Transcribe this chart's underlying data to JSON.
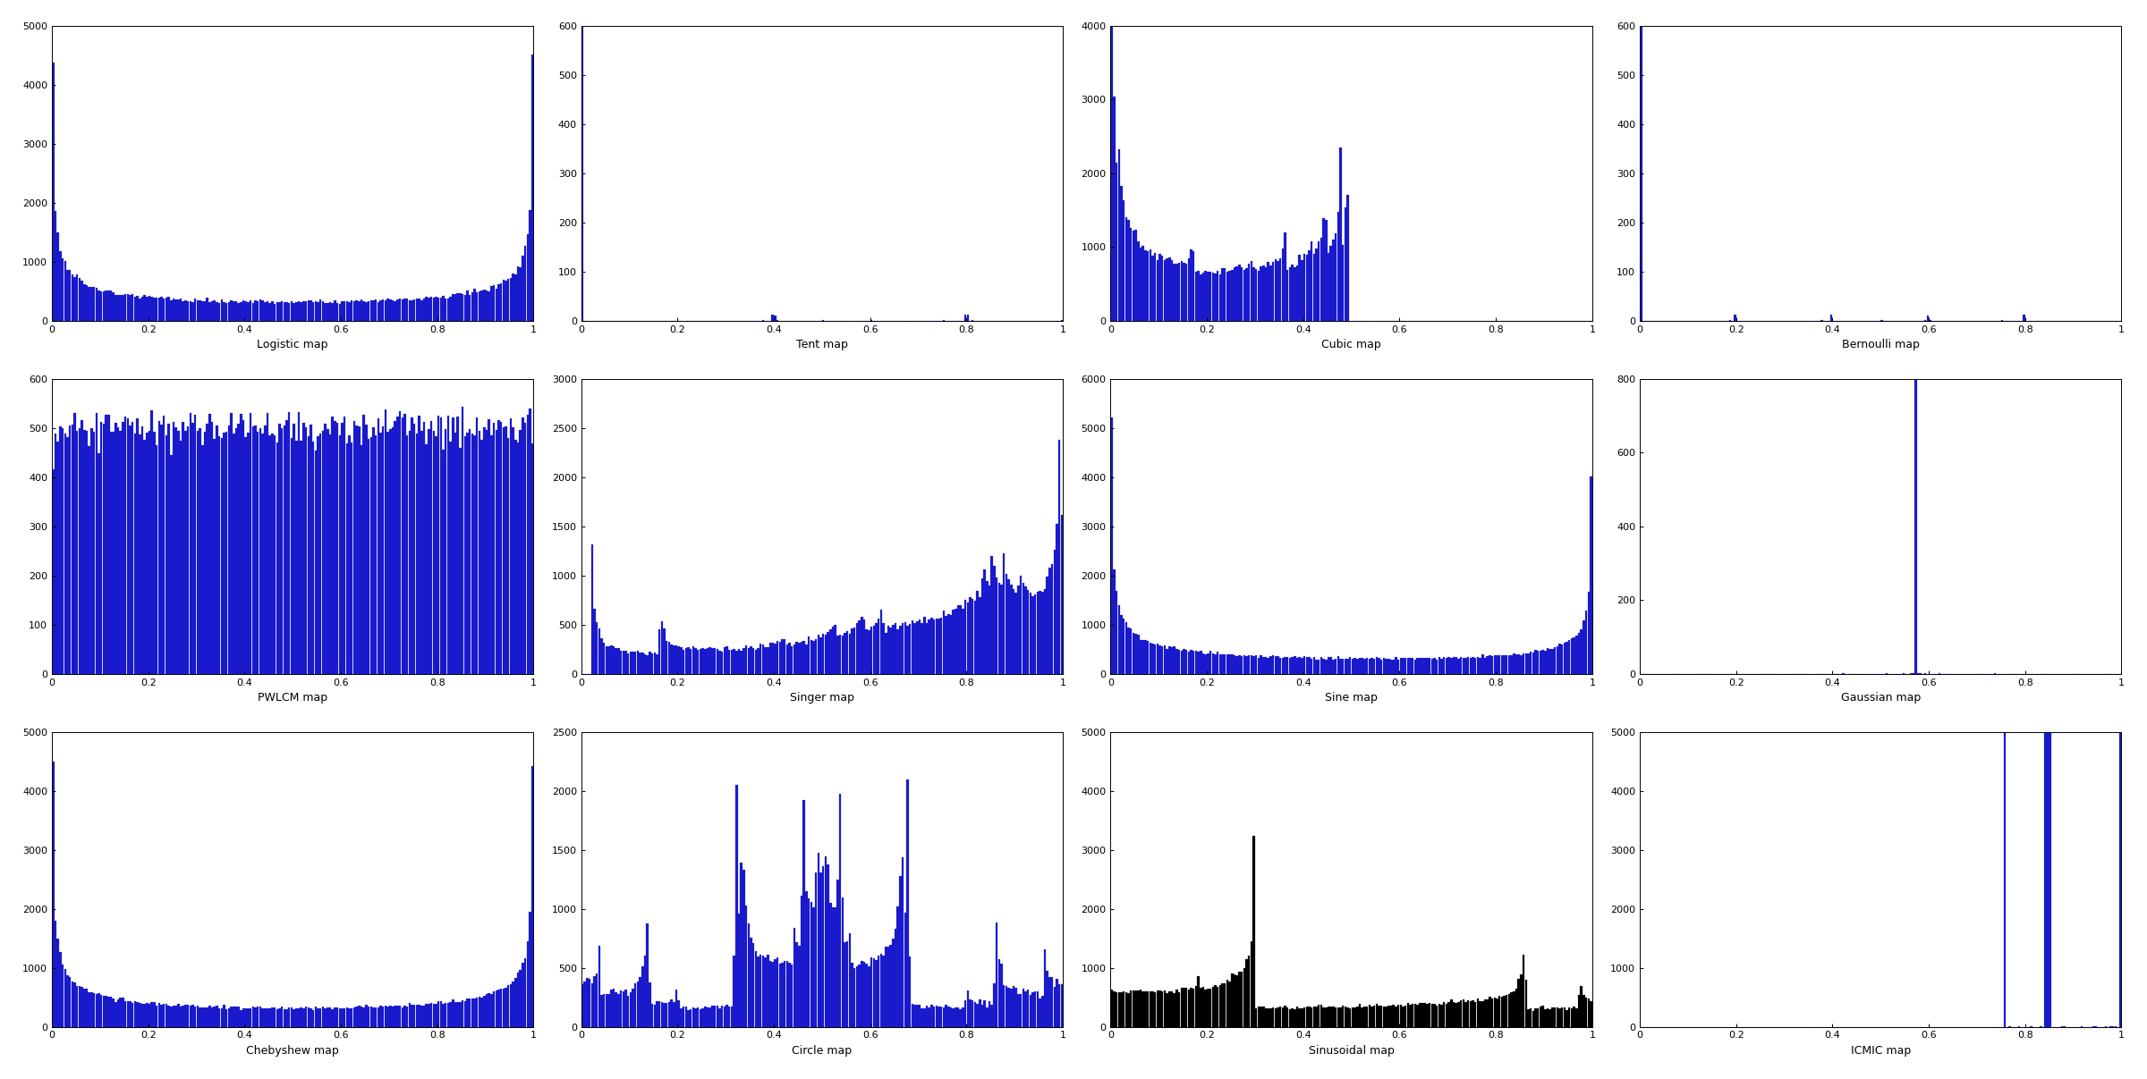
{
  "maps": [
    {
      "name": "Logistic map",
      "type": "logistic",
      "bar_color": "#1a1acd",
      "ylim": [
        0,
        5000
      ],
      "yticks": [
        0,
        1000,
        2000,
        3000,
        4000,
        5000
      ]
    },
    {
      "name": "Tent map",
      "type": "tent",
      "bar_color": "#1a1acd",
      "ylim": [
        0,
        600
      ],
      "yticks": [
        0,
        100,
        200,
        300,
        400,
        500,
        600
      ]
    },
    {
      "name": "Cubic map",
      "type": "cubic",
      "bar_color": "#1a1acd",
      "ylim": [
        0,
        4000
      ],
      "yticks": [
        0,
        1000,
        2000,
        3000,
        4000
      ]
    },
    {
      "name": "Bernoulli map",
      "type": "bernoulli",
      "bar_color": "#1a1acd",
      "ylim": [
        0,
        600
      ],
      "yticks": [
        0,
        100,
        200,
        300,
        400,
        500,
        600
      ]
    },
    {
      "name": "PWLCM map",
      "type": "pwlcm",
      "bar_color": "#1a1acd",
      "ylim": [
        0,
        600
      ],
      "yticks": [
        0,
        100,
        200,
        300,
        400,
        500,
        600
      ]
    },
    {
      "name": "Singer map",
      "type": "singer",
      "bar_color": "#1a1acd",
      "ylim": [
        0,
        3000
      ],
      "yticks": [
        0,
        500,
        1000,
        1500,
        2000,
        2500,
        3000
      ]
    },
    {
      "name": "Sine map",
      "type": "sine",
      "bar_color": "#1a1acd",
      "ylim": [
        0,
        6000
      ],
      "yticks": [
        0,
        1000,
        2000,
        3000,
        4000,
        5000,
        6000
      ]
    },
    {
      "name": "Gaussian map",
      "type": "gaussian",
      "bar_color": "#1a1acd",
      "ylim": [
        0,
        800
      ],
      "yticks": [
        0,
        200,
        400,
        600,
        800
      ]
    },
    {
      "name": "Chebyshew map",
      "type": "chebyshew",
      "bar_color": "#1a1acd",
      "ylim": [
        0,
        5000
      ],
      "yticks": [
        0,
        1000,
        2000,
        3000,
        4000,
        5000
      ]
    },
    {
      "name": "Circle map",
      "type": "circle",
      "bar_color": "#1a1acd",
      "ylim": [
        0,
        2500
      ],
      "yticks": [
        0,
        500,
        1000,
        1500,
        2000,
        2500
      ]
    },
    {
      "name": "Sinusoidal map",
      "type": "sinusoidal",
      "bar_color": "#000000",
      "ylim": [
        0,
        5000
      ],
      "yticks": [
        0,
        1000,
        2000,
        3000,
        4000,
        5000
      ]
    },
    {
      "name": "ICMIC map",
      "type": "icmic",
      "bar_color": "#1a1acd",
      "ylim": [
        0,
        5000
      ],
      "yticks": [
        0,
        1000,
        2000,
        3000,
        4000,
        5000
      ]
    }
  ],
  "n_iter": 100000,
  "n_bins": 200,
  "figsize": [
    24.0,
    12.07
  ],
  "dpi": 100
}
